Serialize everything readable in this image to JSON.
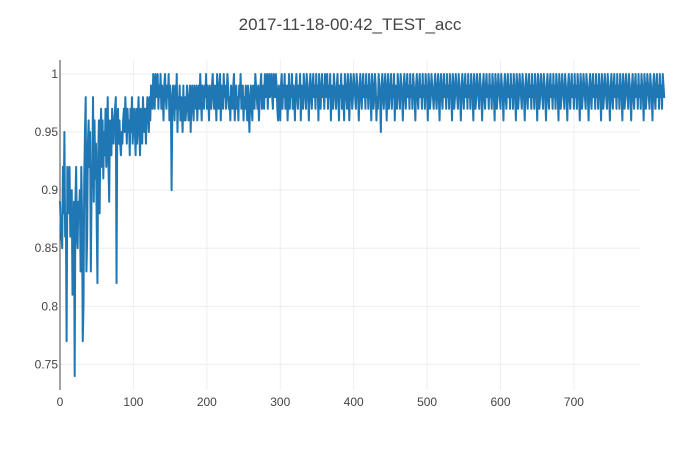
{
  "chart_data": {
    "type": "line",
    "title": "2017-11-18-00:42_TEST_acc",
    "xlabel": "",
    "ylabel": "",
    "xlim": [
      0,
      790
    ],
    "ylim": [
      0.728,
      1.012
    ],
    "x_ticks": [
      0,
      100,
      200,
      300,
      400,
      500,
      600,
      700
    ],
    "y_ticks": [
      0.75,
      0.8,
      0.85,
      0.9,
      0.95,
      1
    ],
    "y_tick_labels": [
      "0.75",
      "0.8",
      "0.85",
      "0.9",
      "0.95",
      "1"
    ],
    "grid": true,
    "legend": "none",
    "series": [
      {
        "color": "#1f77b4",
        "x_start": 0,
        "x_step": 1,
        "values": [
          0.89,
          0.87,
          0.86,
          0.85,
          0.92,
          0.88,
          0.95,
          0.86,
          0.88,
          0.77,
          0.92,
          0.88,
          0.9,
          0.92,
          0.86,
          0.88,
          0.9,
          0.81,
          0.83,
          0.89,
          0.74,
          0.89,
          0.92,
          0.86,
          0.85,
          0.89,
          0.88,
          0.9,
          0.83,
          0.92,
          0.88,
          0.77,
          0.8,
          0.91,
          0.95,
          0.98,
          0.83,
          0.86,
          0.94,
          0.96,
          0.92,
          0.95,
          0.83,
          0.9,
          0.92,
          0.98,
          0.89,
          0.96,
          0.91,
          0.94,
          0.87,
          0.82,
          0.93,
          0.96,
          0.88,
          0.95,
          0.97,
          0.92,
          0.96,
          0.91,
          0.95,
          0.93,
          0.97,
          0.92,
          0.94,
          0.98,
          0.92,
          0.89,
          0.96,
          0.95,
          0.93,
          0.97,
          0.95,
          0.94,
          0.96,
          0.97,
          0.98,
          0.82,
          0.96,
          0.97,
          0.94,
          0.96,
          0.94,
          0.93,
          0.95,
          0.94,
          0.96,
          0.97,
          0.95,
          0.98,
          0.96,
          0.94,
          0.97,
          0.95,
          0.96,
          0.93,
          0.97,
          0.95,
          0.98,
          0.94,
          0.96,
          0.97,
          0.95,
          0.93,
          0.97,
          0.94,
          0.96,
          0.98,
          0.95,
          0.93,
          0.97,
          0.96,
          0.94,
          0.98,
          0.96,
          0.95,
          0.97,
          0.94,
          0.96,
          0.98,
          0.97,
          0.95,
          0.98,
          0.96,
          0.99,
          0.98,
          0.97,
          1.0,
          0.99,
          0.97,
          1.0,
          0.98,
          0.99,
          1.0,
          0.97,
          0.99,
          0.98,
          1.0,
          0.97,
          0.99,
          0.98,
          0.96,
          0.99,
          1.0,
          0.98,
          0.97,
          0.99,
          0.98,
          1.0,
          0.96,
          0.99,
          0.98,
          0.9,
          0.97,
          0.99,
          0.98,
          0.96,
          0.99,
          0.97,
          1.0,
          0.95,
          0.98,
          0.97,
          0.99,
          0.96,
          0.98,
          0.97,
          0.95,
          0.99,
          0.96,
          0.98,
          0.96,
          0.97,
          0.99,
          0.98,
          0.96,
          0.97,
          0.99,
          0.95,
          0.98,
          0.99,
          0.97,
          0.96,
          0.99,
          0.98,
          0.97,
          0.99,
          0.96,
          0.98,
          0.99,
          0.97,
          1.0,
          0.98,
          0.96,
          0.99,
          0.98,
          0.97,
          0.99,
          0.98,
          1.0,
          0.97,
          0.99,
          0.98,
          0.96,
          0.99,
          0.98,
          0.97,
          0.99,
          1.0,
          0.98,
          0.97,
          0.99,
          0.98,
          0.96,
          1.0,
          0.99,
          0.97,
          0.98,
          1.0,
          0.96,
          0.99,
          0.98,
          0.97,
          1.0,
          0.98,
          0.99,
          0.97,
          0.98,
          1.0,
          0.99,
          0.97,
          0.98,
          0.96,
          0.99,
          0.98,
          0.97,
          0.99,
          1.0,
          0.96,
          0.98,
          0.99,
          0.97,
          0.98,
          0.96,
          0.99,
          0.98,
          1.0,
          0.97,
          0.98,
          0.99,
          0.96,
          0.98,
          0.97,
          0.99,
          0.98,
          0.96,
          0.99,
          0.97,
          0.95,
          0.98,
          0.99,
          0.97,
          0.96,
          0.99,
          0.98,
          0.97,
          1.0,
          0.99,
          0.98,
          0.97,
          0.99,
          0.96,
          0.98,
          0.99,
          1.0,
          0.97,
          0.98,
          0.99,
          0.97,
          1.0,
          0.98,
          0.99,
          1.0,
          0.97,
          0.99,
          1.0,
          0.98,
          0.99,
          1.0,
          0.98,
          0.97,
          1.0,
          0.99,
          0.98,
          1.0,
          0.99,
          0.97,
          0.96,
          0.99,
          0.98,
          0.96,
          0.99,
          1.0,
          0.97,
          0.99,
          0.98,
          1.0,
          0.97,
          0.98,
          0.99,
          0.96,
          0.98,
          1.0,
          0.97,
          0.99,
          0.98,
          1.0,
          0.97,
          0.99,
          0.98,
          0.96,
          0.99,
          1.0,
          0.98,
          0.97,
          0.99,
          0.98,
          1.0,
          0.96,
          0.99,
          0.98,
          0.97,
          1.0,
          0.99,
          0.98,
          0.97,
          1.0,
          0.99,
          0.98,
          0.96,
          0.99,
          1.0,
          0.98,
          0.97,
          0.99,
          1.0,
          0.98,
          0.99,
          0.97,
          1.0,
          0.98,
          0.99,
          0.96,
          1.0,
          0.98,
          0.97,
          0.99,
          1.0,
          0.98,
          0.99,
          0.97,
          1.0,
          0.99,
          0.98,
          1.0,
          0.97,
          0.99,
          0.98,
          1.0,
          0.96,
          0.99,
          0.98,
          0.97,
          1.0,
          0.99,
          0.98,
          0.97,
          0.99,
          1.0,
          0.98,
          0.96,
          0.99,
          0.98,
          1.0,
          0.97,
          0.99,
          0.98,
          0.96,
          1.0,
          0.99,
          0.98,
          0.97,
          1.0,
          0.99,
          0.96,
          0.98,
          1.0,
          0.99,
          0.97,
          0.98,
          1.0,
          0.99,
          0.98,
          0.97,
          1.0,
          0.99,
          0.98,
          0.96,
          0.99,
          1.0,
          0.98,
          0.97,
          0.99,
          1.0,
          0.98,
          0.99,
          0.97,
          1.0,
          0.98,
          0.99,
          0.97,
          1.0,
          0.99,
          0.98,
          0.96,
          1.0,
          0.99,
          0.97,
          0.98,
          1.0,
          0.99,
          0.96,
          0.98,
          0.97,
          1.0,
          0.99,
          0.98,
          0.95,
          0.99,
          1.0,
          0.98,
          0.97,
          0.99,
          1.0,
          0.98,
          0.96,
          0.99,
          1.0,
          0.97,
          0.98,
          0.99,
          1.0,
          0.97,
          0.99,
          0.98,
          1.0,
          0.96,
          0.99,
          0.98,
          0.97,
          1.0,
          0.99,
          0.98,
          0.97,
          1.0,
          0.99,
          0.98,
          0.96,
          0.99,
          1.0,
          0.98,
          0.97,
          0.99,
          1.0,
          0.98,
          0.99,
          0.97,
          1.0,
          0.98,
          0.99,
          0.97,
          1.0,
          0.99,
          0.98,
          0.96,
          0.99,
          1.0,
          0.98,
          0.97,
          0.99,
          1.0,
          0.98,
          0.99,
          0.97,
          1.0,
          0.98,
          0.99,
          0.97,
          1.0,
          0.99,
          0.98,
          0.96,
          1.0,
          0.99,
          0.97,
          0.98,
          1.0,
          0.99,
          0.98,
          0.97,
          0.99,
          1.0,
          0.98,
          0.97,
          0.99,
          1.0,
          0.98,
          0.96,
          0.99,
          1.0,
          0.98,
          0.97,
          0.99,
          1.0,
          0.98,
          0.99,
          0.97,
          1.0,
          0.98,
          0.99,
          0.97,
          1.0,
          0.99,
          0.98,
          0.96,
          1.0,
          0.99,
          0.97,
          0.98,
          1.0,
          0.99,
          0.98,
          0.97,
          1.0,
          0.99,
          0.98,
          0.96,
          0.99,
          1.0,
          0.98,
          0.97,
          0.99,
          1.0,
          0.98,
          0.99,
          0.97,
          1.0,
          0.98,
          0.99,
          0.97,
          1.0,
          0.99,
          0.98,
          0.96,
          1.0,
          0.99,
          0.97,
          0.98,
          1.0,
          0.99,
          0.98,
          0.97,
          1.0,
          0.99,
          0.98,
          0.96,
          0.99,
          1.0,
          0.98,
          0.97,
          0.99,
          1.0,
          0.98,
          0.99,
          0.97,
          1.0,
          0.98,
          0.99,
          0.97,
          1.0,
          0.99,
          0.98,
          0.96,
          1.0,
          0.99,
          0.97,
          0.98,
          1.0,
          0.99,
          0.98,
          0.97,
          1.0,
          0.99,
          0.98,
          0.96,
          0.99,
          1.0,
          0.98,
          0.97,
          0.99,
          1.0,
          0.98,
          0.99,
          0.97,
          1.0,
          0.98,
          0.99,
          0.97,
          1.0,
          0.99,
          0.98,
          0.96,
          1.0,
          0.99,
          0.97,
          0.98,
          1.0,
          0.99,
          0.98,
          0.97,
          1.0,
          0.99,
          0.98,
          0.96,
          0.99,
          1.0,
          0.98,
          0.97,
          0.99,
          1.0,
          0.98,
          0.99,
          0.97,
          1.0,
          0.98,
          0.99,
          0.97,
          1.0,
          0.99,
          0.98,
          0.96,
          1.0,
          0.99,
          0.97,
          0.98,
          1.0,
          0.99,
          0.98,
          0.97,
          1.0,
          0.99,
          0.98,
          0.96,
          0.99,
          1.0,
          0.98,
          0.97,
          0.99,
          1.0,
          0.98,
          0.99,
          0.97,
          1.0,
          0.98,
          0.99,
          0.97,
          1.0,
          0.99,
          0.98,
          0.96,
          1.0,
          0.99,
          0.97,
          0.98,
          1.0,
          0.99,
          0.98,
          0.97,
          1.0,
          0.99,
          0.98,
          0.96,
          0.99,
          1.0,
          0.98,
          0.97,
          0.99,
          1.0,
          0.98,
          0.99,
          0.97,
          1.0,
          0.98,
          0.99,
          0.97,
          1.0,
          0.99,
          0.98,
          0.96,
          1.0,
          0.99,
          0.97,
          0.98,
          1.0,
          0.99,
          0.98,
          0.97,
          1.0,
          0.99,
          0.98,
          0.96,
          0.99,
          1.0,
          0.98,
          0.97,
          0.99,
          1.0,
          0.98,
          0.99,
          0.97,
          1.0,
          0.98,
          0.99,
          0.97,
          1.0,
          0.99,
          0.98,
          0.96,
          1.0,
          0.99,
          0.97,
          0.98,
          1.0,
          0.99,
          0.98,
          0.97,
          1.0,
          0.99,
          0.98,
          0.96,
          0.99,
          1.0,
          0.98,
          0.97,
          0.99,
          1.0,
          0.98,
          0.99,
          0.97,
          1.0,
          0.98,
          0.99,
          0.97,
          1.0,
          0.99,
          0.98,
          0.96,
          1.0,
          0.99,
          0.97,
          0.98,
          1.0,
          0.99,
          0.98,
          0.97,
          1.0,
          0.99,
          0.98,
          0.96,
          0.99,
          1.0,
          0.98,
          0.97,
          0.99,
          1.0,
          0.98,
          0.99,
          0.97,
          1.0,
          0.98,
          0.99,
          0.97,
          1.0,
          0.99,
          0.98,
          0.96,
          1.0,
          0.99,
          0.97,
          0.98,
          1.0,
          0.99,
          0.98,
          0.97,
          1.0,
          0.99,
          0.98,
          0.96,
          0.99,
          1.0,
          0.98,
          0.97,
          0.99,
          1.0,
          0.98,
          0.99,
          0.97,
          1.0,
          0.98,
          0.99,
          0.97,
          1.0,
          0.99,
          0.98
        ]
      }
    ]
  }
}
